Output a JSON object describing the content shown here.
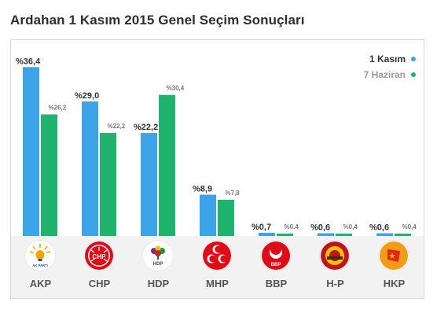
{
  "page": {
    "title": "Ardahan 1 Kasım 2015 Genel Seçim Sonuçları"
  },
  "chart_data": {
    "type": "bar",
    "categories": [
      "AKP",
      "CHP",
      "HDP",
      "MHP",
      "BBP",
      "H-P",
      "HKP"
    ],
    "series": [
      {
        "name": "1 Kasım",
        "color": "#3ea4ea",
        "values": [
          36.4,
          29.0,
          22.2,
          8.9,
          0.7,
          0.6,
          0.6
        ],
        "labels": [
          "%36,4",
          "%29,0",
          "%22,2",
          "%8,9",
          "%0,7",
          "%0,6",
          "%0,6"
        ]
      },
      {
        "name": "7 Haziran",
        "color": "#1fb36d",
        "values": [
          26.2,
          22.2,
          30.4,
          7.8,
          0.4,
          0.4,
          0.4
        ],
        "labels": [
          "%26,2",
          "%22,2",
          "%30,4",
          "%7,8",
          "%0,4",
          "%0,4",
          "%0,4"
        ]
      }
    ],
    "ylim": [
      0,
      37.3
    ],
    "legend_position": "top-right",
    "grid": false
  },
  "legend": [
    {
      "label": "1 Kasım",
      "color": "#3ea4ea"
    },
    {
      "label": "7 Haziran",
      "color": "#1fb36d"
    }
  ],
  "parties": [
    {
      "name": "AKP",
      "logo_icon": "akp-bulb-logo-icon",
      "logo_text": "AK PARTİ"
    },
    {
      "name": "CHP",
      "logo_icon": "chp-six-arrows-logo-icon",
      "logo_text": "CHP"
    },
    {
      "name": "HDP",
      "logo_icon": "hdp-tree-logo-icon",
      "logo_text": "HDP"
    },
    {
      "name": "MHP",
      "logo_icon": "mhp-three-crescents-logo-icon"
    },
    {
      "name": "BBP",
      "logo_icon": "bbp-crescent-logo-icon",
      "logo_text": "BBP"
    },
    {
      "name": "H-P",
      "logo_icon": "hp-sun-logo-icon"
    },
    {
      "name": "HKP",
      "logo_icon": "hkp-flag-logo-icon"
    }
  ]
}
